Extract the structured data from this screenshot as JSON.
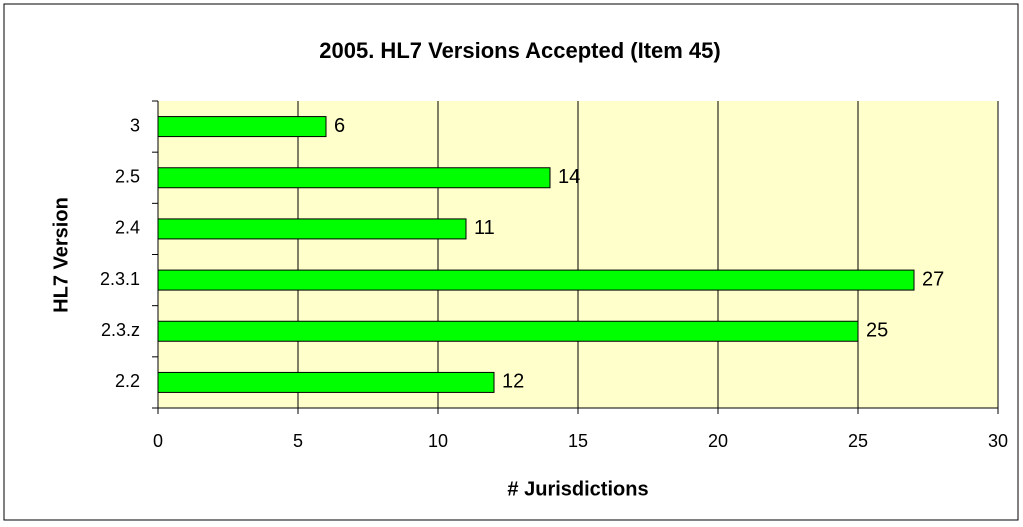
{
  "chart_data": {
    "type": "bar",
    "orientation": "horizontal",
    "title": "2005. HL7 Versions Accepted (Item 45)",
    "x_label": "# Jurisdictions",
    "y_label": "HL7 Version",
    "categories": [
      "3",
      "2.5",
      "2.4",
      "2.3.1",
      "2.3.z",
      "2.2"
    ],
    "values": [
      6,
      14,
      11,
      27,
      25,
      12
    ],
    "color": "#00ff00",
    "xlim": [
      0,
      30
    ],
    "xticks": [
      0,
      5,
      10,
      15,
      20,
      25,
      30
    ],
    "grid": true
  }
}
